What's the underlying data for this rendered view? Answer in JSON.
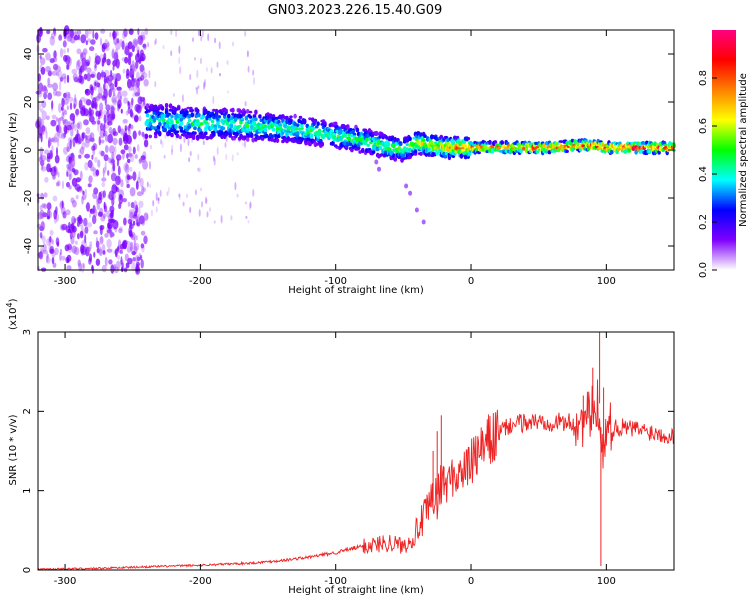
{
  "title": "GN03.2023.226.15.40.G09",
  "chart_data": [
    {
      "type": "heatmap",
      "xlabel": "Height of straight line (km)",
      "ylabel": "Frequency (Hz)",
      "xlim": [
        -320,
        150
      ],
      "ylim": [
        -50,
        50
      ],
      "xticks": [
        -300,
        -200,
        -100,
        0,
        100
      ],
      "yticks": [
        -40,
        -20,
        0,
        20,
        40
      ],
      "colorbar": {
        "label": "Normalized spectral amplitude",
        "range": [
          0.0,
          1.0
        ],
        "ticks": [
          0.0,
          0.2,
          0.4,
          0.6,
          0.8
        ],
        "tick_labels": [
          "0.0",
          "0.2",
          "0.4",
          "0.6",
          "0.8"
        ],
        "colormap": [
          "#ffffff",
          "#7f00ff",
          "#0000ff",
          "#00ffff",
          "#00ff00",
          "#ffff00",
          "#ff8000",
          "#ff0000",
          "#ff0080"
        ]
      },
      "ridge": {
        "x": [
          -240,
          -220,
          -200,
          -180,
          -160,
          -140,
          -120,
          -100,
          -80,
          -60,
          -50,
          -40,
          -30,
          -20,
          -10,
          0,
          20,
          40,
          60,
          80,
          90,
          100,
          120,
          150
        ],
        "frequency": [
          12,
          12,
          11,
          11,
          10,
          9,
          8,
          6,
          4,
          1,
          0,
          3,
          2,
          1,
          1,
          1,
          1,
          1,
          1,
          2,
          2,
          1,
          1,
          1
        ],
        "peak_amplitude": [
          0.45,
          0.45,
          0.5,
          0.5,
          0.5,
          0.5,
          0.5,
          0.5,
          0.5,
          0.55,
          0.55,
          0.65,
          0.7,
          0.75,
          0.8,
          0.85,
          0.85,
          0.9,
          0.9,
          0.95,
          0.9,
          0.95,
          0.95,
          0.95
        ]
      },
      "noise_region": {
        "x_from": -320,
        "x_to": -240
      }
    },
    {
      "type": "line",
      "xlabel": "Height of straight line (km)",
      "ylabel": "SNR (10 * v/v)",
      "y_multiplier": "(x10",
      "y_multiplier_exp": "4",
      "y_multiplier_close": ")",
      "xlim": [
        -320,
        150
      ],
      "ylim": [
        0,
        3
      ],
      "xticks": [
        -300,
        -200,
        -100,
        0,
        100
      ],
      "yticks": [
        0,
        1,
        2,
        3
      ],
      "color": "#ee2222",
      "x": [
        -320,
        -280,
        -240,
        -200,
        -160,
        -140,
        -120,
        -100,
        -80,
        -60,
        -50,
        -45,
        -40,
        -35,
        -30,
        -25,
        -20,
        -15,
        -10,
        -5,
        0,
        5,
        10,
        15,
        20,
        25,
        30,
        40,
        50,
        60,
        70,
        80,
        85,
        88,
        92,
        95,
        97,
        100,
        110,
        120,
        130,
        140,
        150
      ],
      "y": [
        0.01,
        0.02,
        0.04,
        0.06,
        0.09,
        0.12,
        0.16,
        0.22,
        0.3,
        0.35,
        0.3,
        0.38,
        0.5,
        0.65,
        0.8,
        0.95,
        1.05,
        1.15,
        1.2,
        1.25,
        1.35,
        1.45,
        1.55,
        1.65,
        1.72,
        1.78,
        1.83,
        1.86,
        1.87,
        1.87,
        1.86,
        1.85,
        1.9,
        1.95,
        2.0,
        2.1,
        1.5,
        1.8,
        1.8,
        1.78,
        1.75,
        1.72,
        1.68
      ],
      "spikes": [
        {
          "x": -28,
          "y": 1.5
        },
        {
          "x": -25,
          "y": 1.75
        },
        {
          "x": -22,
          "y": 1.95
        },
        {
          "x": -20,
          "y": 1.3
        },
        {
          "x": 83,
          "y": 2.2
        },
        {
          "x": 90,
          "y": 2.55
        },
        {
          "x": 95,
          "y": 3.0
        },
        {
          "x": 96,
          "y": 0.05
        },
        {
          "x": 98,
          "y": 2.3
        }
      ]
    }
  ]
}
